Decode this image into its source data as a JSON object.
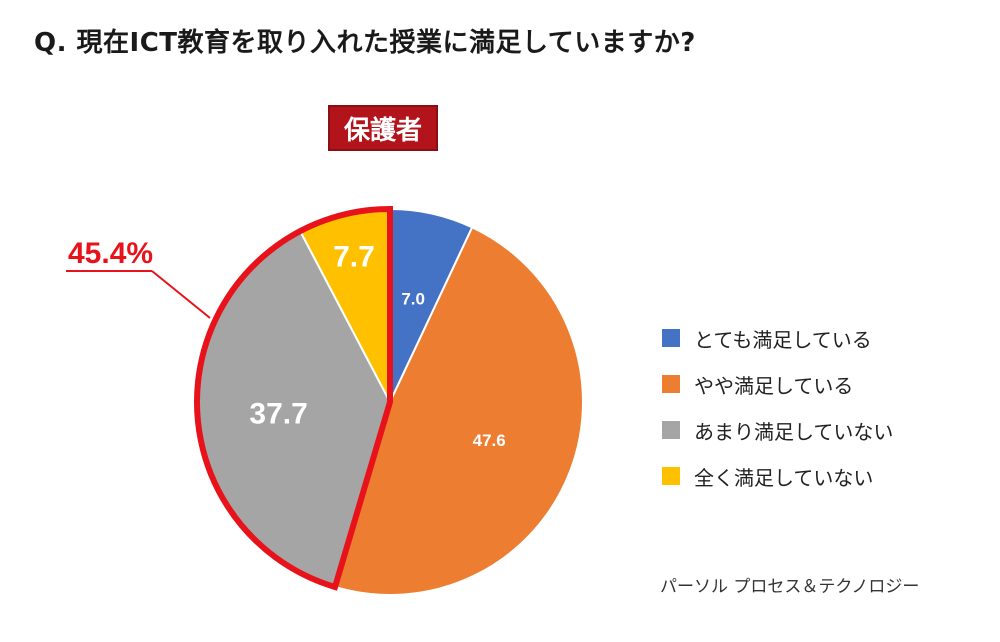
{
  "question": "Q. 現在ICT教育を取り入れた授業に満足していますか?",
  "group_badge": "保護者",
  "callout_label": "45.4%",
  "source": "パーソル プロセス＆テクノロジー",
  "colors": {
    "badge_bg": "#b3141c",
    "highlight": "#e8131a"
  },
  "chart_data": {
    "type": "pie",
    "title": "Q. 現在ICT教育を取り入れた授業に満足していますか?",
    "subtitle": "保護者",
    "start_angle_deg": 0,
    "direction": "clockwise",
    "slices": [
      {
        "label": "とても満足している",
        "value": 7.0,
        "display": "7.0",
        "color": "#4472c4"
      },
      {
        "label": "やや満足している",
        "value": 47.6,
        "display": "47.6",
        "color": "#ed7d31"
      },
      {
        "label": "あまり満足していない",
        "value": 37.7,
        "display": "37.7",
        "color": "#a5a5a5"
      },
      {
        "label": "全く満足していない",
        "value": 7.7,
        "display": "7.7",
        "color": "#ffc000"
      }
    ],
    "highlight": {
      "slices": [
        "あまり満足していない",
        "全く満足していない"
      ],
      "total_label": "45.4%"
    },
    "legend_position": "right"
  }
}
